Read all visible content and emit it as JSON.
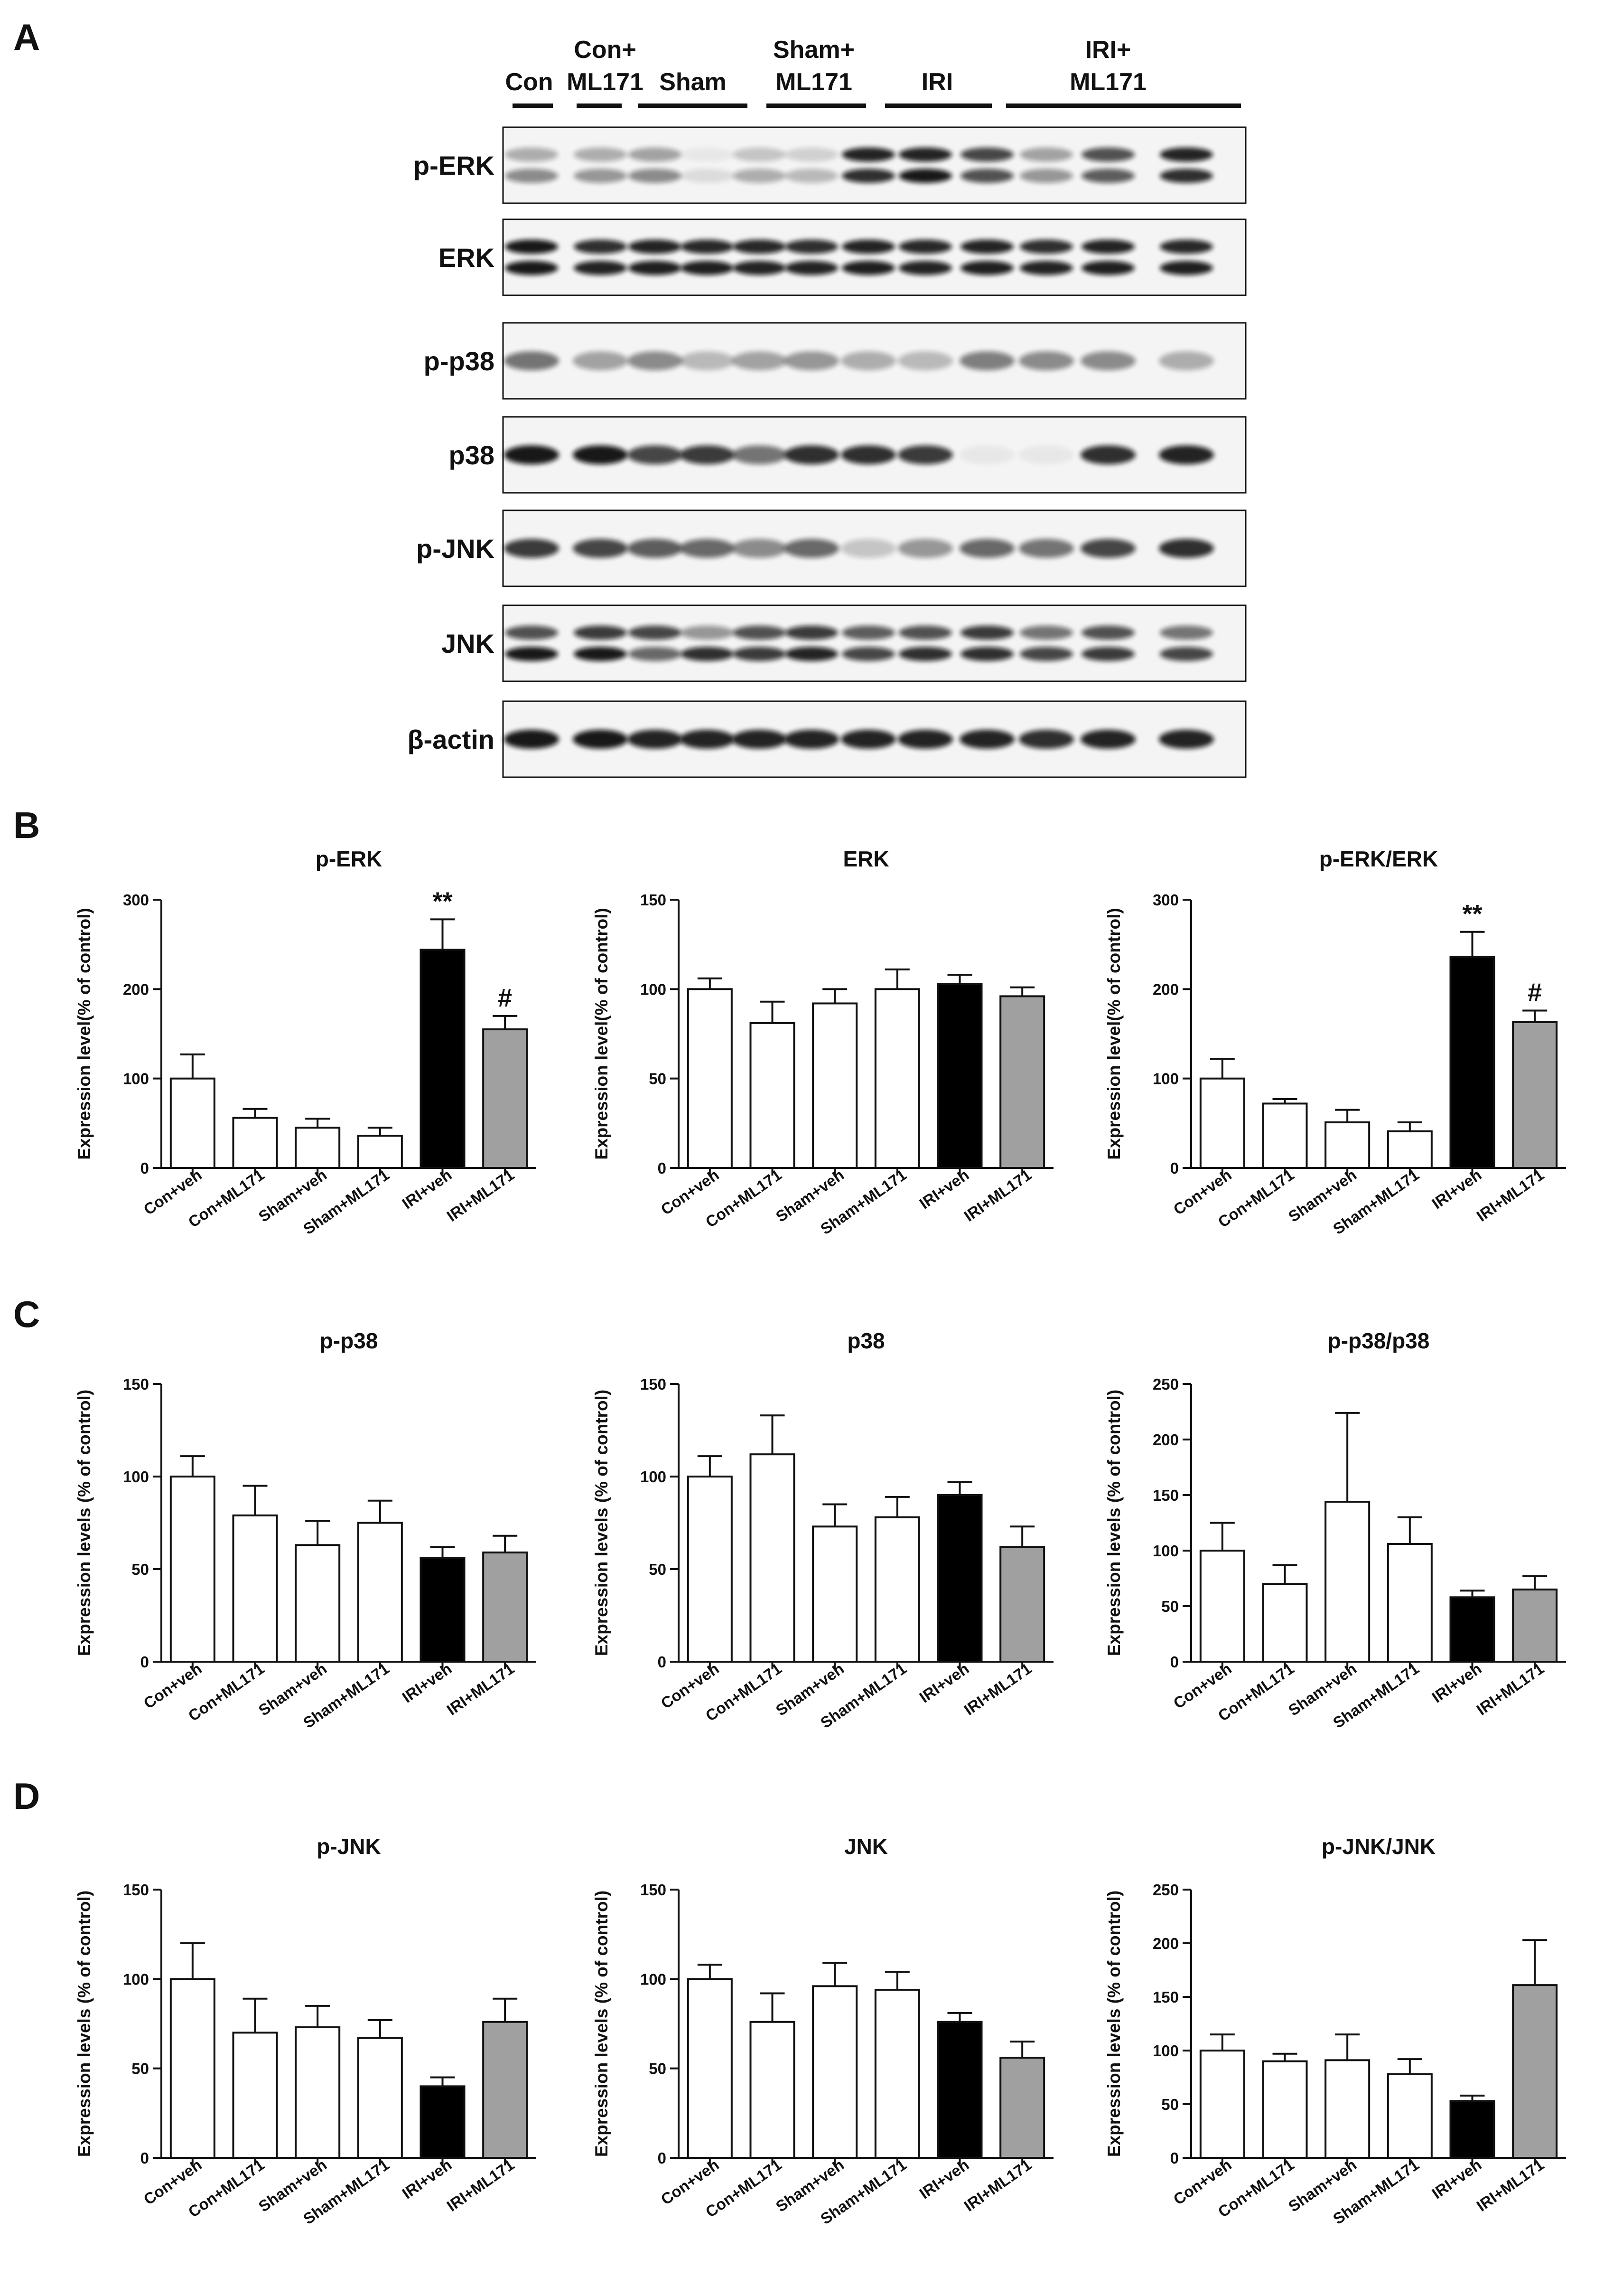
{
  "panels": [
    "A",
    "B",
    "C",
    "D"
  ],
  "blot": {
    "groups": [
      {
        "label": [
          "Con"
        ],
        "lanes": [
          0,
          0
        ]
      },
      {
        "label": [
          "Con+",
          "ML171"
        ],
        "lanes": [
          1,
          1
        ]
      },
      {
        "label": [
          "Sham"
        ],
        "lanes": [
          2,
          3
        ]
      },
      {
        "label": [
          "Sham+",
          "ML171"
        ],
        "lanes": [
          4,
          5
        ]
      },
      {
        "label": [
          "IRI"
        ],
        "lanes": [
          6,
          7
        ]
      },
      {
        "label": [
          "IRI+",
          "ML171"
        ],
        "lanes": [
          8,
          11
        ]
      }
    ],
    "rows": [
      {
        "label": "p-ERK",
        "doublet": true,
        "intensity": [
          0.45,
          0.4,
          0.45,
          0.1,
          0.3,
          0.25,
          0.85,
          0.95,
          0.7,
          0.4,
          0.65,
          0.85
        ],
        "upper": [
          0.3,
          0.3,
          0.35,
          0.05,
          0.2,
          0.15,
          0.9,
          0.9,
          0.75,
          0.35,
          0.7,
          0.9
        ]
      },
      {
        "label": "ERK",
        "doublet": true,
        "intensity": [
          0.95,
          0.9,
          0.92,
          0.92,
          0.9,
          0.9,
          0.92,
          0.9,
          0.92,
          0.9,
          0.92,
          0.92
        ],
        "upper": [
          0.95,
          0.85,
          0.9,
          0.88,
          0.88,
          0.85,
          0.9,
          0.88,
          0.9,
          0.85,
          0.9,
          0.88
        ]
      },
      {
        "label": "p-p38",
        "doublet": false,
        "intensity": [
          0.55,
          0.35,
          0.45,
          0.25,
          0.35,
          0.4,
          0.3,
          0.25,
          0.5,
          0.45,
          0.45,
          0.3
        ]
      },
      {
        "label": "p38",
        "doublet": false,
        "intensity": [
          0.95,
          0.95,
          0.75,
          0.8,
          0.55,
          0.85,
          0.85,
          0.8,
          0.05,
          0.05,
          0.85,
          0.9
        ]
      },
      {
        "label": "p-JNK",
        "doublet": false,
        "intensity": [
          0.8,
          0.75,
          0.65,
          0.6,
          0.45,
          0.6,
          0.2,
          0.4,
          0.6,
          0.55,
          0.75,
          0.85
        ]
      },
      {
        "label": "JNK",
        "doublet": true,
        "intensity": [
          0.95,
          0.95,
          0.6,
          0.85,
          0.8,
          0.9,
          0.75,
          0.85,
          0.85,
          0.75,
          0.8,
          0.75
        ],
        "upper": [
          0.7,
          0.8,
          0.75,
          0.4,
          0.7,
          0.8,
          0.65,
          0.7,
          0.8,
          0.55,
          0.7,
          0.55
        ]
      },
      {
        "label": "β-actin",
        "doublet": false,
        "intensity": [
          0.95,
          0.95,
          0.9,
          0.9,
          0.9,
          0.9,
          0.9,
          0.9,
          0.9,
          0.85,
          0.9,
          0.9
        ]
      }
    ]
  },
  "chart_data": [
    {
      "type": "bar",
      "panel": "B",
      "title": "p-ERK",
      "ylabel": "Expression level(% of control)",
      "categories": [
        "Con+veh",
        "Con+ML171",
        "Sham+veh",
        "Sham+ML171",
        "IRI+veh",
        "IRI+ML171"
      ],
      "values": [
        100,
        56,
        45,
        36,
        244,
        155
      ],
      "errors": [
        27,
        10,
        10,
        9,
        34,
        15
      ],
      "ylim": [
        0,
        300
      ],
      "yticks": [
        0,
        100,
        200,
        300
      ],
      "fills": [
        "#ffffff",
        "#ffffff",
        "#ffffff",
        "#ffffff",
        "#000000",
        "#a0a0a0"
      ],
      "annotations": [
        "",
        "",
        "",
        "",
        "**",
        "#"
      ]
    },
    {
      "type": "bar",
      "panel": "B",
      "title": "ERK",
      "ylabel": "Expression level(% of control)",
      "categories": [
        "Con+veh",
        "Con+ML171",
        "Sham+veh",
        "Sham+ML171",
        "IRI+veh",
        "IRI+ML171"
      ],
      "values": [
        100,
        81,
        92,
        100,
        103,
        96
      ],
      "errors": [
        6,
        12,
        8,
        11,
        5,
        5
      ],
      "ylim": [
        0,
        150
      ],
      "yticks": [
        0,
        50,
        100,
        150
      ],
      "fills": [
        "#ffffff",
        "#ffffff",
        "#ffffff",
        "#ffffff",
        "#000000",
        "#a0a0a0"
      ],
      "annotations": [
        "",
        "",
        "",
        "",
        "",
        ""
      ]
    },
    {
      "type": "bar",
      "panel": "B",
      "title": "p-ERK/ERK",
      "ylabel": "Expression level(% of control)",
      "categories": [
        "Con+veh",
        "Con+ML171",
        "Sham+veh",
        "Sham+ML171",
        "IRI+veh",
        "IRI+ML171"
      ],
      "values": [
        100,
        72,
        51,
        41,
        236,
        163
      ],
      "errors": [
        22,
        5,
        14,
        10,
        28,
        13
      ],
      "ylim": [
        0,
        300
      ],
      "yticks": [
        0,
        100,
        200,
        300
      ],
      "fills": [
        "#ffffff",
        "#ffffff",
        "#ffffff",
        "#ffffff",
        "#000000",
        "#a0a0a0"
      ],
      "annotations": [
        "",
        "",
        "",
        "",
        "**",
        "#"
      ]
    },
    {
      "type": "bar",
      "panel": "C",
      "title": "p-p38",
      "ylabel": "Expression levels (% of control)",
      "categories": [
        "Con+veh",
        "Con+ML171",
        "Sham+veh",
        "Sham+ML171",
        "IRI+veh",
        "IRI+ML171"
      ],
      "values": [
        100,
        79,
        63,
        75,
        56,
        59
      ],
      "errors": [
        11,
        16,
        13,
        12,
        6,
        9
      ],
      "ylim": [
        0,
        150
      ],
      "yticks": [
        0,
        50,
        100,
        150
      ],
      "fills": [
        "#ffffff",
        "#ffffff",
        "#ffffff",
        "#ffffff",
        "#000000",
        "#a0a0a0"
      ],
      "annotations": [
        "",
        "",
        "",
        "",
        "",
        ""
      ]
    },
    {
      "type": "bar",
      "panel": "C",
      "title": "p38",
      "ylabel": "Expression levels (% of control)",
      "categories": [
        "Con+veh",
        "Con+ML171",
        "Sham+veh",
        "Sham+ML171",
        "IRI+veh",
        "IRI+ML171"
      ],
      "values": [
        100,
        112,
        73,
        78,
        90,
        62
      ],
      "errors": [
        11,
        21,
        12,
        11,
        7,
        11
      ],
      "ylim": [
        0,
        150
      ],
      "yticks": [
        0,
        50,
        100,
        150
      ],
      "fills": [
        "#ffffff",
        "#ffffff",
        "#ffffff",
        "#ffffff",
        "#000000",
        "#a0a0a0"
      ],
      "annotations": [
        "",
        "",
        "",
        "",
        "",
        ""
      ]
    },
    {
      "type": "bar",
      "panel": "C",
      "title": "p-p38/p38",
      "ylabel": "Expression levels (% of control)",
      "categories": [
        "Con+veh",
        "Con+ML171",
        "Sham+veh",
        "Sham+ML171",
        "IRI+veh",
        "IRI+ML171"
      ],
      "values": [
        100,
        70,
        144,
        106,
        58,
        65
      ],
      "errors": [
        25,
        17,
        80,
        24,
        6,
        12
      ],
      "ylim": [
        0,
        250
      ],
      "yticks": [
        0,
        50,
        100,
        150,
        200,
        250
      ],
      "fills": [
        "#ffffff",
        "#ffffff",
        "#ffffff",
        "#ffffff",
        "#000000",
        "#a0a0a0"
      ],
      "annotations": [
        "",
        "",
        "",
        "",
        "",
        ""
      ]
    },
    {
      "type": "bar",
      "panel": "D",
      "title": "p-JNK",
      "ylabel": "Expression levels (% of control)",
      "categories": [
        "Con+veh",
        "Con+ML171",
        "Sham+veh",
        "Sham+ML171",
        "IRI+veh",
        "IRI+ML171"
      ],
      "values": [
        100,
        70,
        73,
        67,
        40,
        76
      ],
      "errors": [
        20,
        19,
        12,
        10,
        5,
        13
      ],
      "ylim": [
        0,
        150
      ],
      "yticks": [
        0,
        50,
        100,
        150
      ],
      "fills": [
        "#ffffff",
        "#ffffff",
        "#ffffff",
        "#ffffff",
        "#000000",
        "#a0a0a0"
      ],
      "annotations": [
        "",
        "",
        "",
        "",
        "",
        ""
      ]
    },
    {
      "type": "bar",
      "panel": "D",
      "title": "JNK",
      "ylabel": "Expression levels (% of control)",
      "categories": [
        "Con+veh",
        "Con+ML171",
        "Sham+veh",
        "Sham+ML171",
        "IRI+veh",
        "IRI+ML171"
      ],
      "values": [
        100,
        76,
        96,
        94,
        76,
        56
      ],
      "errors": [
        8,
        16,
        13,
        10,
        5,
        9
      ],
      "ylim": [
        0,
        150
      ],
      "yticks": [
        0,
        50,
        100,
        150
      ],
      "fills": [
        "#ffffff",
        "#ffffff",
        "#ffffff",
        "#ffffff",
        "#000000",
        "#a0a0a0"
      ],
      "annotations": [
        "",
        "",
        "",
        "",
        "",
        ""
      ]
    },
    {
      "type": "bar",
      "panel": "D",
      "title": "p-JNK/JNK",
      "ylabel": "Expression levels (% of control)",
      "categories": [
        "Con+veh",
        "Con+ML171",
        "Sham+veh",
        "Sham+ML171",
        "IRI+veh",
        "IRI+ML171"
      ],
      "values": [
        100,
        90,
        91,
        78,
        53,
        161
      ],
      "errors": [
        15,
        7,
        24,
        14,
        5,
        42
      ],
      "ylim": [
        0,
        250
      ],
      "yticks": [
        0,
        50,
        100,
        150,
        200,
        250
      ],
      "fills": [
        "#ffffff",
        "#ffffff",
        "#ffffff",
        "#ffffff",
        "#000000",
        "#a0a0a0"
      ],
      "annotations": [
        "",
        "",
        "",
        "",
        "",
        ""
      ]
    }
  ]
}
